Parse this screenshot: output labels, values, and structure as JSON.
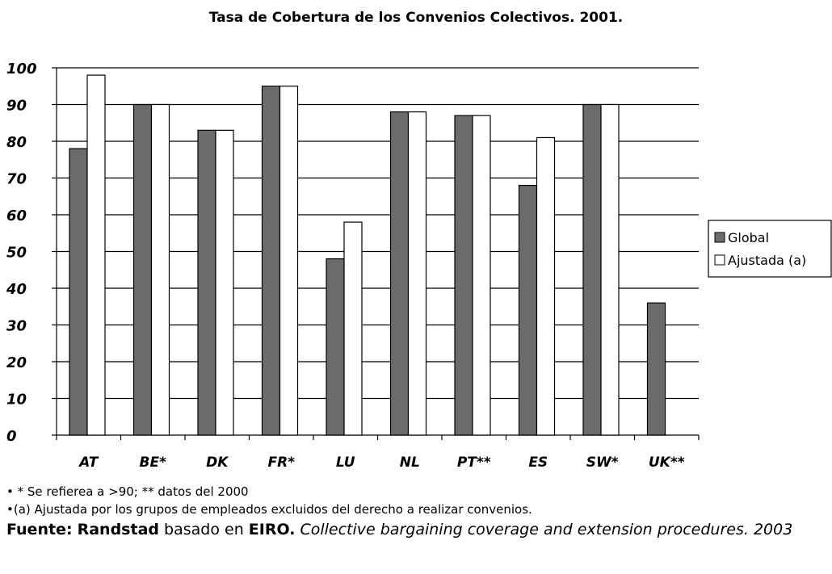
{
  "chart_data": {
    "type": "bar",
    "title": "Tasa de Cobertura de los Convenios Colectivos. 2001.",
    "categories": [
      "AT",
      "BE*",
      "DK",
      "FR*",
      "LU",
      "NL",
      "PT**",
      "ES",
      "SW*",
      "UK**"
    ],
    "series": [
      {
        "name": "Global",
        "values": [
          78,
          90,
          83,
          95,
          48,
          88,
          87,
          68,
          90,
          36
        ],
        "color": "#6b6b6b"
      },
      {
        "name": "Ajustada (a)",
        "values": [
          98,
          90,
          83,
          95,
          58,
          88,
          87,
          81,
          90,
          null
        ],
        "color": "#ffffff"
      }
    ],
    "ylim": [
      0,
      100
    ],
    "yticks": [
      0,
      10,
      20,
      30,
      40,
      50,
      60,
      70,
      80,
      90,
      100
    ],
    "grid": true,
    "legend": "right"
  },
  "notes": {
    "note1": "• * Se refierea a >90; ** datos del 2000",
    "note2": "•(a) Ajustada por los grupos de empleados excluidos del derecho a realizar convenios.",
    "source_label": "Fuente:",
    "source_org": "Randstad",
    "source_mid": " basado en ",
    "source_ref": "EIRO.",
    "source_title": " Collective bargaining coverage and extension procedures. 2003"
  }
}
